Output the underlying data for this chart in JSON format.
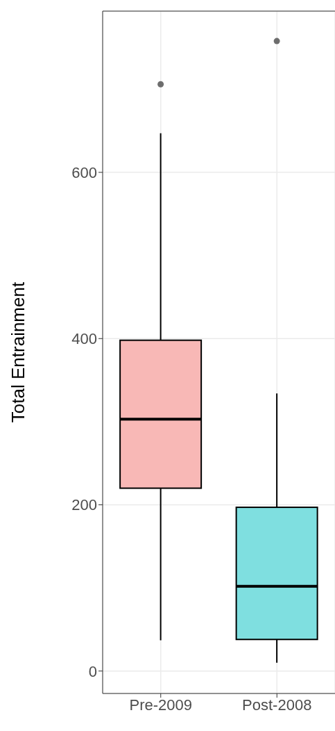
{
  "chart_data": {
    "type": "box",
    "ylabel": "Total Entrainment",
    "categories": [
      "Pre-2009",
      "Post-2008"
    ],
    "boxes": [
      {
        "low": 37,
        "q1": 220,
        "median": 303,
        "q3": 398,
        "high": 647,
        "outliers": [
          706
        ]
      },
      {
        "low": 10,
        "q1": 38,
        "median": 102,
        "q3": 197,
        "high": 334,
        "outliers": [
          758
        ]
      }
    ],
    "colors": [
      "#f8b8b6",
      "#7fdfe0"
    ],
    "ylim": [
      -27,
      794
    ],
    "yticks": [
      0,
      200,
      400,
      600
    ],
    "grid": true
  }
}
